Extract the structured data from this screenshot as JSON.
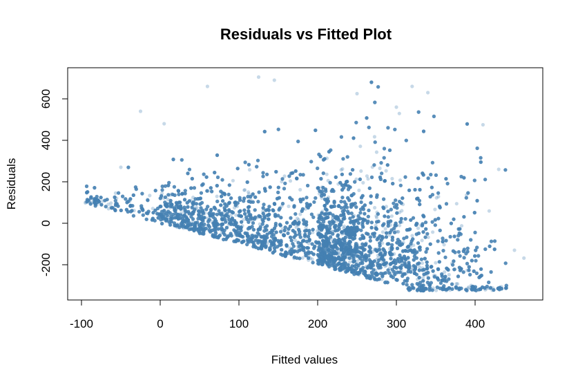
{
  "chart_data": {
    "type": "scatter",
    "title": "Residuals vs Fitted Plot",
    "xlabel": "Fitted values",
    "ylabel": "Residuals",
    "xlim": [
      -100,
      480
    ],
    "ylim": [
      -330,
      720
    ],
    "x_ticks": [
      -100,
      0,
      100,
      200,
      300,
      400
    ],
    "y_ticks": [
      -200,
      0,
      200,
      400,
      600
    ],
    "x_tick_labels": [
      "-100",
      "0",
      "100",
      "200",
      "300",
      "400"
    ],
    "y_tick_labels": [
      "-200",
      "0",
      "200",
      "400",
      "600"
    ],
    "grid": false,
    "point_color": "#4682B4",
    "point_opacity": 0.3,
    "point_count_approx": 12000,
    "lower_bound_line": "y = -x",
    "sample_points": [
      {
        "x": -95,
        "y": 98
      },
      {
        "x": -80,
        "y": 92
      },
      {
        "x": -50,
        "y": 270
      },
      {
        "x": -25,
        "y": 540
      },
      {
        "x": 5,
        "y": 480
      },
      {
        "x": 60,
        "y": 660
      },
      {
        "x": 125,
        "y": 705
      },
      {
        "x": 145,
        "y": 690
      },
      {
        "x": 200,
        "y": -195
      },
      {
        "x": 250,
        "y": 625
      },
      {
        "x": 300,
        "y": 560
      },
      {
        "x": 320,
        "y": 660
      },
      {
        "x": 340,
        "y": 630
      },
      {
        "x": 380,
        "y": -320
      },
      {
        "x": 395,
        "y": -300
      },
      {
        "x": 410,
        "y": 475
      },
      {
        "x": 430,
        "y": 260
      },
      {
        "x": 450,
        "y": -130
      },
      {
        "x": 462,
        "y": -168
      }
    ]
  }
}
